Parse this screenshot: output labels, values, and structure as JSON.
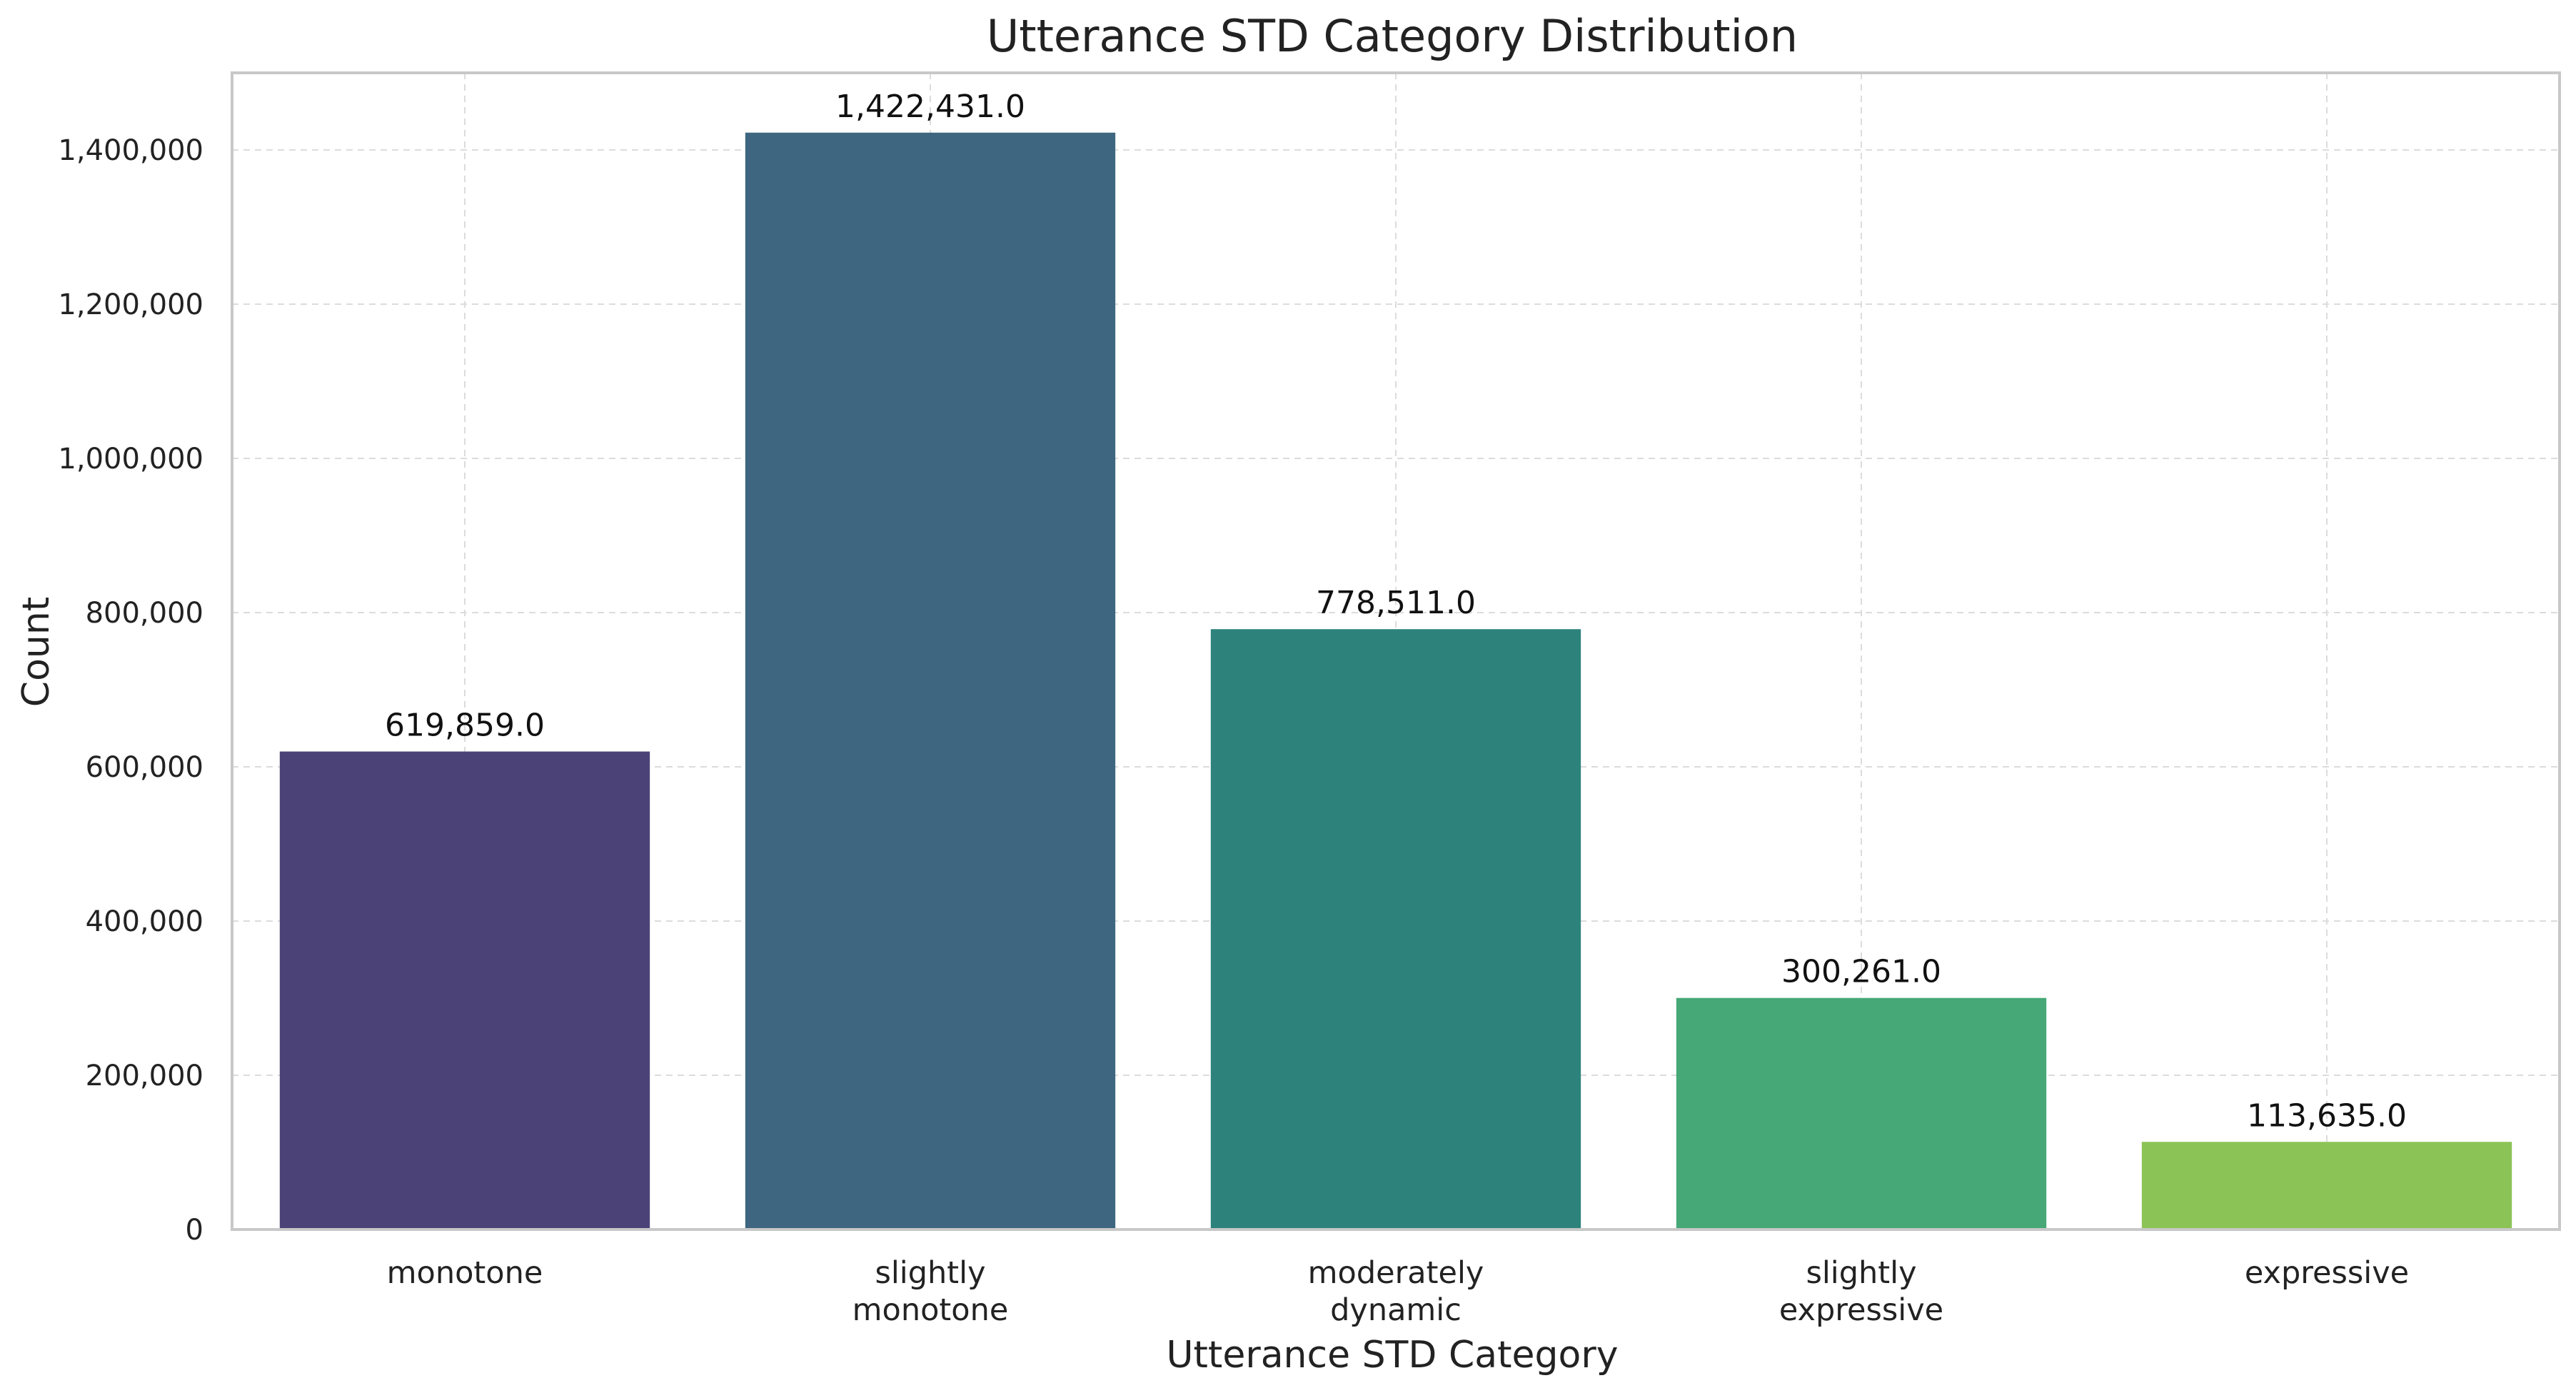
{
  "chart_data": {
    "type": "bar",
    "title": "Utterance STD Category Distribution",
    "xlabel": "Utterance STD Category",
    "ylabel": "Count",
    "categories": [
      [
        "monotone"
      ],
      [
        "slightly",
        "monotone"
      ],
      [
        "moderately",
        "dynamic"
      ],
      [
        "slightly",
        "expressive"
      ],
      [
        "expressive"
      ]
    ],
    "values": [
      619859,
      1422431,
      778511,
      300261,
      113635
    ],
    "value_labels": [
      "619,859.0",
      "1,422,431.0",
      "778,511.0",
      "300,261.0",
      "113,635.0"
    ],
    "colors": [
      "#4b4378",
      "#3e6680",
      "#2d837c",
      "#46a877",
      "#8bc356"
    ],
    "ylim": [
      0,
      1500000
    ],
    "yticks": [
      0,
      200000,
      400000,
      600000,
      800000,
      1000000,
      1200000,
      1400000
    ],
    "ytick_labels": [
      "0",
      "200,000",
      "400,000",
      "600,000",
      "800,000",
      "1,000,000",
      "1,200,000",
      "1,400,000"
    ],
    "grid": true
  }
}
